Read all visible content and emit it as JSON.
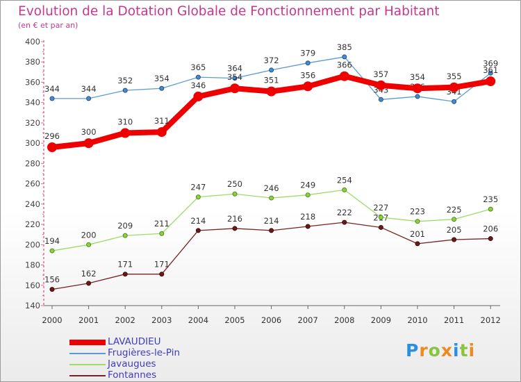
{
  "chart_data": {
    "type": "line",
    "title": "Evolution de la Dotation Globale de Fonctionnement par Habitant",
    "subtitle": "(en € et par an)",
    "xlabel": "",
    "ylabel": "",
    "x": [
      "2000",
      "2001",
      "2002",
      "2003",
      "2004",
      "2005",
      "2006",
      "2007",
      "2008",
      "2009",
      "2010",
      "2011",
      "2012"
    ],
    "ylim": [
      140,
      400
    ],
    "yticks": [
      140,
      160,
      180,
      200,
      220,
      240,
      260,
      280,
      300,
      320,
      340,
      360,
      380,
      400
    ],
    "grid": false,
    "legend_position": "bottom-left",
    "series": [
      {
        "name": "LAVAUDIEU",
        "color": "#ee0000",
        "values": [
          296,
          300,
          310,
          311,
          346,
          354,
          351,
          356,
          366,
          357,
          354,
          355,
          361
        ]
      },
      {
        "name": "Frugières-le-Pin",
        "color": "#5b9bd5",
        "values": [
          344,
          344,
          352,
          354,
          365,
          364,
          372,
          379,
          385,
          343,
          346,
          341,
          369
        ]
      },
      {
        "name": "Javaugues",
        "color": "#99dd66",
        "values": [
          194,
          200,
          209,
          211,
          247,
          250,
          246,
          249,
          254,
          227,
          223,
          225,
          235
        ]
      },
      {
        "name": "Fontannes",
        "color": "#772222",
        "values": [
          156,
          162,
          171,
          171,
          214,
          216,
          214,
          218,
          222,
          217,
          201,
          205,
          206
        ]
      }
    ]
  },
  "logo": {
    "letters": [
      "P",
      "r",
      "o",
      "x",
      "i",
      "t",
      "i"
    ],
    "colors": [
      "#2a8fe0",
      "#f08a1e",
      "#8ac33e",
      "#f08a1e",
      "#2a8fe0",
      "#8ac33e",
      "#f08a1e"
    ]
  }
}
